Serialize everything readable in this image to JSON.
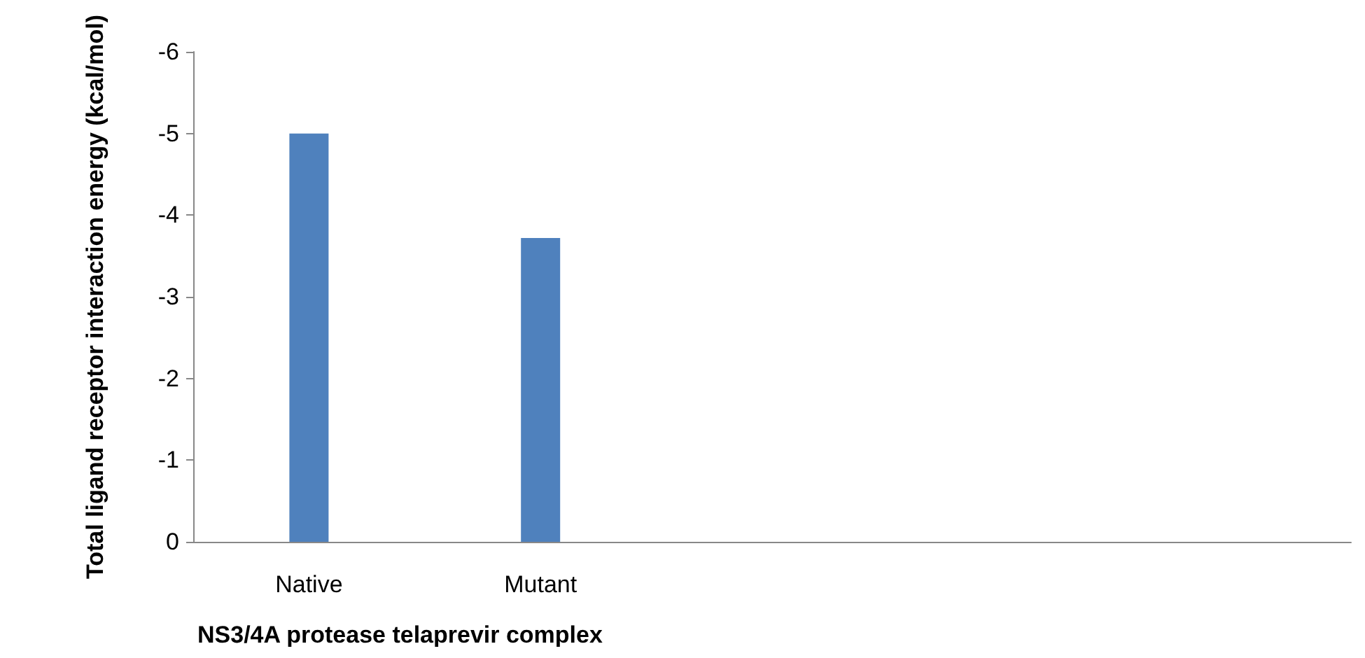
{
  "chart_data": {
    "type": "bar",
    "xlabel": "NS3/4A protease telaprevir complex",
    "ylabel": "Total ligand receptor interaction energy (kcal/mol)",
    "categories": [
      "Native",
      "Mutant",
      null,
      null,
      null
    ],
    "values": [
      -5,
      -3.72,
      null,
      null,
      null
    ],
    "color": "#4f81bd",
    "ylim": [
      0,
      -6
    ],
    "yticks": [
      0,
      -1,
      -2,
      -3,
      -4,
      -5,
      -6
    ],
    "grid": false
  }
}
